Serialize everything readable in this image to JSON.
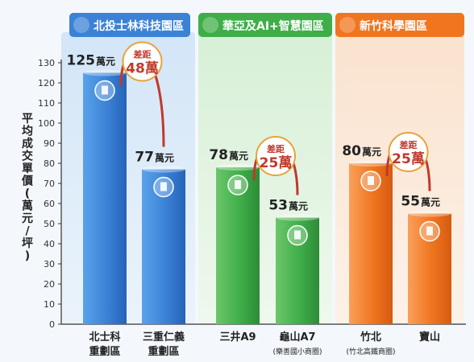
{
  "chart_data": {
    "type": "bar",
    "ylabel": "平均成交單價(萬元/坪)",
    "ylim": [
      0,
      130
    ],
    "yticks": [
      0,
      10,
      20,
      30,
      40,
      50,
      60,
      70,
      80,
      90,
      100,
      110,
      120,
      130
    ],
    "grid": false,
    "unit": "萬元",
    "groups": [
      {
        "title": "北投士林科技園區",
        "color": "#3b82d6",
        "bars": [
          {
            "line1": "北士科",
            "line2": "重劃區",
            "value": 125,
            "label_num": "125",
            "label_unit": "萬元"
          },
          {
            "line1": "三重仁義",
            "line2": "重劃區",
            "value": 77,
            "label_num": "77",
            "label_unit": "萬元"
          }
        ],
        "gap": {
          "label": "差距",
          "value": "48萬"
        }
      },
      {
        "title": "華亞及AI+智慧園區",
        "color": "#3fae49",
        "bars": [
          {
            "line1": "三井A9",
            "line2": "",
            "value": 78,
            "label_num": "78",
            "label_unit": "萬元"
          },
          {
            "line1": "龜山A7",
            "line2": "(樂善國小商圈)",
            "value": 53,
            "label_num": "53",
            "label_unit": "萬元"
          }
        ],
        "gap": {
          "label": "差距",
          "value": "25萬"
        }
      },
      {
        "title": "新竹科學園區",
        "color": "#f0751f",
        "bars": [
          {
            "line1": "竹北",
            "line2": "(竹北高鐵商圈)",
            "value": 80,
            "label_num": "80",
            "label_unit": "萬元"
          },
          {
            "line1": "寶山",
            "line2": "",
            "value": 55,
            "label_num": "55",
            "label_unit": "萬元"
          }
        ],
        "gap": {
          "label": "差距",
          "value": "25萬"
        }
      }
    ]
  }
}
